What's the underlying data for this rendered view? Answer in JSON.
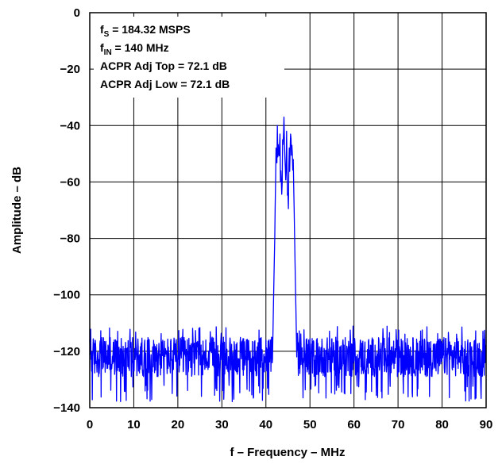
{
  "chart_data": {
    "type": "line",
    "title": "",
    "xlabel": "f – Frequency – MHz",
    "ylabel": "Amplitude – dB",
    "xlim": [
      0,
      90
    ],
    "ylim": [
      -140,
      0
    ],
    "x_ticks": [
      "0",
      "10",
      "20",
      "30",
      "40",
      "50",
      "60",
      "70",
      "80",
      "90"
    ],
    "y_ticks": [
      "0",
      "−20",
      "−40",
      "−60",
      "−80",
      "−100",
      "−120",
      "−140"
    ],
    "grid": true,
    "legend": "none",
    "annotations": [
      {
        "main": "f",
        "sub": "S",
        "rest": " = 184.32 MSPS"
      },
      {
        "main": "f",
        "sub": "IN",
        "rest": " = 140 MHz"
      },
      {
        "main": "ACPR Adj Top = 72.1 dB",
        "sub": "",
        "rest": ""
      },
      {
        "main": "ACPR Adj Low = 72.1 dB",
        "sub": "",
        "rest": ""
      }
    ],
    "series": [
      {
        "color": "#0000ff",
        "noise_floor": {
          "x_ranges": [
            [
              0,
              41.5
            ],
            [
              47,
              90
            ]
          ],
          "level_db": -122,
          "min_db": -138,
          "max_db": -111
        },
        "points": {
          "x": [
            41.5,
            42.0,
            42.3,
            42.6,
            42.9,
            43.2,
            43.5,
            43.8,
            44.1,
            44.4,
            44.7,
            45.0,
            45.3,
            45.6,
            45.9,
            46.2,
            46.5,
            47.0
          ],
          "y": [
            -122,
            -80,
            -48,
            -40,
            -50,
            -43,
            -60,
            -45,
            -37,
            -55,
            -42,
            -64,
            -48,
            -43,
            -47,
            -52,
            -78,
            -122
          ]
        }
      }
    ]
  }
}
